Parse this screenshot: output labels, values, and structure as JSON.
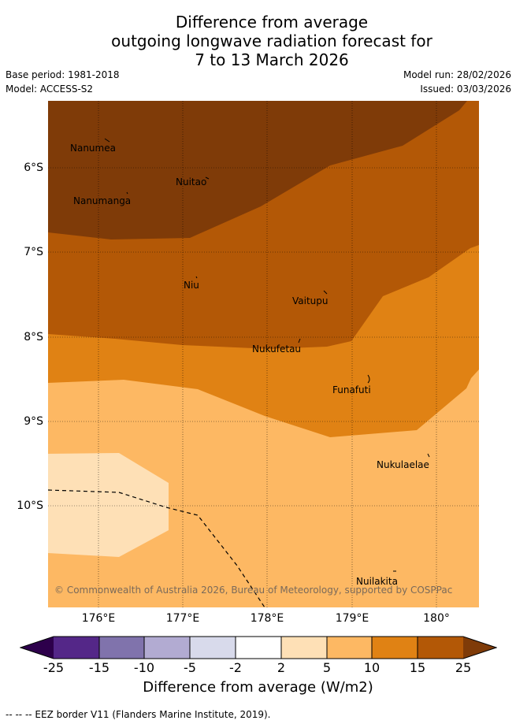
{
  "title": {
    "line1": "Difference from average",
    "line2": "outgoing longwave radiation forecast for",
    "line3": "7 to 13 March 2026"
  },
  "meta": {
    "base_period": "Base period: 1981-2018",
    "model": "Model: ACCESS-S2",
    "model_run": "Model run: 28/02/2026",
    "issued": "Issued: 03/03/2026"
  },
  "map": {
    "lat_ticks": [
      "6°S",
      "7°S",
      "8°S",
      "9°S",
      "10°S"
    ],
    "lon_ticks": [
      "176°E",
      "177°E",
      "178°E",
      "179°E",
      "180°"
    ],
    "places": [
      {
        "name": "Nanumea"
      },
      {
        "name": "Nuitao"
      },
      {
        "name": "Nanumanga"
      },
      {
        "name": "Niu"
      },
      {
        "name": "Vaitupu"
      },
      {
        "name": "Nukufetau"
      },
      {
        "name": "Funafuti"
      },
      {
        "name": "Nukulaelae"
      },
      {
        "name": "Nuilakita"
      }
    ],
    "copyright": "© Commonwealth of Australia 2026, Bureau of Meteorology, supported by COSPPac",
    "fill_colors": {
      "15_to_25": "#7f3b08",
      "10_to_15": "#b35806",
      "5_to_10": "#e08214",
      "2_to_5": "#fdb863",
      "-2_to_2": "#fee0b6"
    }
  },
  "colorbar": {
    "title": "Difference from average (W/m2)",
    "labels": [
      "-25",
      "-15",
      "-10",
      "-5",
      "-2",
      "2",
      "5",
      "10",
      "15",
      "25"
    ],
    "colors": [
      "#2d004b",
      "#542788",
      "#8073ac",
      "#b2abd2",
      "#d8daeb",
      "#ffffff",
      "#fee0b6",
      "#fdb863",
      "#e08214",
      "#b35806",
      "#7f3b08"
    ]
  },
  "footer": "--  --  -- EEZ border V11 (Flanders Marine Institute, 2019)."
}
